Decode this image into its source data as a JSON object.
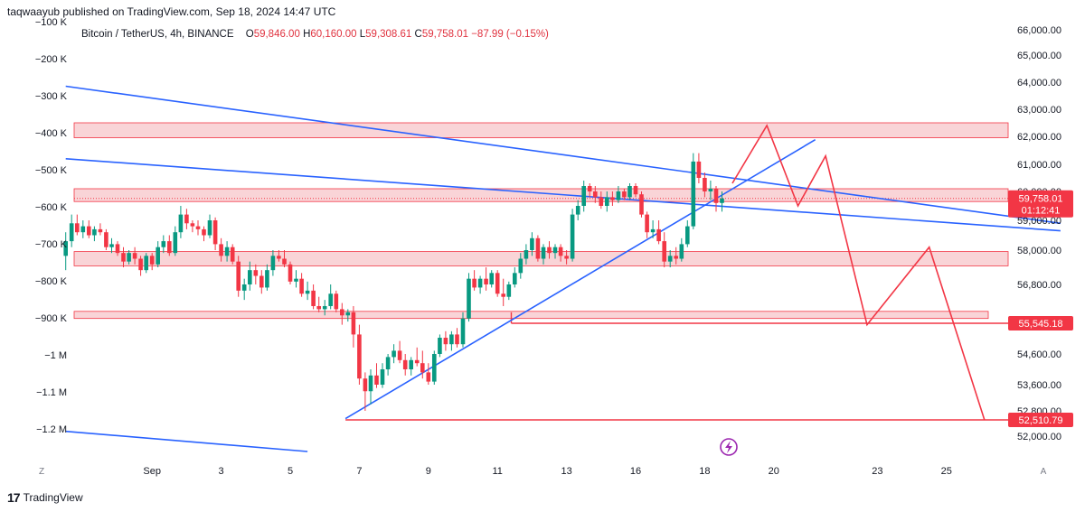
{
  "header": {
    "published_text": "taqwaayub published on TradingView.com, Sep 18, 2024 14:47 UTC"
  },
  "legend": {
    "symbol": "Bitcoin / TetherUS, 4h, BINANCE",
    "open_label": "O",
    "open_value": "59,846.00",
    "high_label": "H",
    "high_value": "60,160.00",
    "low_label": "L",
    "low_value": "59,308.61",
    "close_label": "C",
    "close_value": "59,758.01",
    "change": "−87.99 (−0.15%)"
  },
  "footer": {
    "logo": "17",
    "brand": "TradingView"
  },
  "colors": {
    "up": "#089981",
    "down": "#f23645",
    "trendline": "#2962ff",
    "projection": "#f23645",
    "zone_fill": "#f7c5ca",
    "zone_border": "#f23645"
  },
  "chart_data": {
    "type": "candlestick",
    "symbol": "BTCUSDT",
    "interval": "4h",
    "ylim": [
      51600,
      66300
    ],
    "xlim": [
      -2.4,
      27.5
    ],
    "right_axis_ticks": [
      66000,
      65000,
      64000,
      63000,
      62000,
      61000,
      60000,
      59000,
      58000,
      56800,
      54600,
      53600,
      52800,
      52000
    ],
    "right_axis_labels": [
      "66,000.00",
      "65,000.00",
      "64,000.00",
      "63,000.00",
      "62,000.00",
      "61,000.00",
      "60,000.00",
      "59,000.00",
      "58,000.00",
      "56,800.00",
      "54,600.00",
      "53,600.00",
      "52,800.00",
      "52,000.00"
    ],
    "left_axis_labels": [
      "−100 K",
      "−200 K",
      "−300 K",
      "−400 K",
      "−500 K",
      "−600 K",
      "−700 K",
      "−800 K",
      "−900 K",
      "−1 M",
      "−1.1 M",
      "−1.2 M"
    ],
    "x_tick_labels": [
      {
        "label": "Sep",
        "day": 1
      },
      {
        "label": "3",
        "day": 3
      },
      {
        "label": "5",
        "day": 5
      },
      {
        "label": "7",
        "day": 7
      },
      {
        "label": "9",
        "day": 9
      },
      {
        "label": "11",
        "day": 11
      },
      {
        "label": "13",
        "day": 13
      },
      {
        "label": "16",
        "day": 15
      },
      {
        "label": "18",
        "day": 17
      },
      {
        "label": "20",
        "day": 19
      },
      {
        "label": "23",
        "day": 22
      },
      {
        "label": "25",
        "day": 24
      }
    ],
    "corner_labels": {
      "left": "Z",
      "right": "A"
    },
    "current_price": {
      "value": 59758.01,
      "label": "59,758.01",
      "countdown": "01:12:41"
    },
    "price_labels": [
      {
        "value": 55545.18,
        "label": "55,545.18"
      },
      {
        "value": 52510.79,
        "label": "52,510.79"
      }
    ],
    "zones": [
      {
        "top": 62500,
        "bottom": 61950
      },
      {
        "top": 60100,
        "bottom": 59650
      },
      {
        "top": 57950,
        "bottom": 57450
      },
      {
        "top": 55930,
        "bottom": 55700
      }
    ],
    "horizontal_lines": [
      {
        "price": 55545,
        "from": 11.4,
        "to": 27.3
      },
      {
        "price": 52510,
        "from": 6.6,
        "to": 27.3
      }
    ],
    "trendlines": [
      {
        "x1": -1.5,
        "y1": 63850,
        "x2": 27.3,
        "y2": 58900
      },
      {
        "x1": -1.5,
        "y1": 61200,
        "x2": 27.3,
        "y2": 58650
      },
      {
        "x1": 6.6,
        "y1": 52550,
        "x2": 20.2,
        "y2": 61880
      },
      {
        "x1": -1.5,
        "y1": 52150,
        "x2": 5.5,
        "y2": 51600
      }
    ],
    "projection": [
      {
        "x": 17.8,
        "y": 60300
      },
      {
        "x": 18.8,
        "y": 62400
      },
      {
        "x": 19.7,
        "y": 59500
      },
      {
        "x": 20.5,
        "y": 61300
      },
      {
        "x": 21.7,
        "y": 55500
      },
      {
        "x": 23.5,
        "y": 58100
      },
      {
        "x": 25.1,
        "y": 52510
      }
    ],
    "candles": [
      [
        -1.5,
        57800,
        58600,
        57300,
        58300
      ],
      [
        -1.33,
        58300,
        59200,
        58100,
        58900
      ],
      [
        -1.17,
        58900,
        59200,
        58500,
        58600
      ],
      [
        -1.0,
        58600,
        59000,
        58400,
        58800
      ],
      [
        -0.83,
        58800,
        59000,
        58400,
        58500
      ],
      [
        -0.67,
        58500,
        58800,
        58300,
        58700
      ],
      [
        -0.5,
        58700,
        58900,
        58500,
        58600
      ],
      [
        -0.33,
        58600,
        58700,
        58000,
        58100
      ],
      [
        -0.17,
        58100,
        58400,
        57900,
        58200
      ],
      [
        0.0,
        58200,
        58300,
        57800,
        57900
      ],
      [
        0.17,
        57900,
        58100,
        57400,
        57600
      ],
      [
        0.33,
        57600,
        58000,
        57500,
        57900
      ],
      [
        0.5,
        57900,
        58100,
        57500,
        57700
      ],
      [
        0.67,
        57700,
        57800,
        57100,
        57300
      ],
      [
        0.83,
        57300,
        57900,
        57200,
        57800
      ],
      [
        1.0,
        57800,
        57900,
        57300,
        57500
      ],
      [
        1.17,
        57500,
        58300,
        57400,
        58100
      ],
      [
        1.33,
        58100,
        58500,
        57900,
        58300
      ],
      [
        1.5,
        58300,
        58500,
        57800,
        57900
      ],
      [
        1.67,
        57900,
        58800,
        57800,
        58600
      ],
      [
        1.83,
        58600,
        59500,
        58400,
        59200
      ],
      [
        2.0,
        59200,
        59400,
        58700,
        58900
      ],
      [
        2.17,
        58900,
        59000,
        58600,
        58800
      ],
      [
        2.33,
        58800,
        59000,
        58500,
        58700
      ],
      [
        2.5,
        58700,
        58800,
        58300,
        58500
      ],
      [
        2.67,
        58500,
        59200,
        58400,
        59000
      ],
      [
        2.83,
        59000,
        59100,
        58000,
        58200
      ],
      [
        3.0,
        58200,
        58400,
        57600,
        57800
      ],
      [
        3.17,
        57800,
        58300,
        57600,
        58100
      ],
      [
        3.33,
        58100,
        58200,
        57500,
        57600
      ],
      [
        3.5,
        57600,
        57800,
        56400,
        56600
      ],
      [
        3.67,
        56600,
        57000,
        56300,
        56800
      ],
      [
        3.83,
        56800,
        57600,
        56600,
        57300
      ],
      [
        4.0,
        57300,
        57500,
        56800,
        57100
      ],
      [
        4.17,
        57100,
        57300,
        56500,
        56700
      ],
      [
        4.33,
        56700,
        57500,
        56600,
        57300
      ],
      [
        4.5,
        57300,
        58000,
        57100,
        57800
      ],
      [
        4.67,
        57800,
        58000,
        57600,
        57700
      ],
      [
        4.83,
        57700,
        58000,
        57400,
        57500
      ],
      [
        5.0,
        57500,
        57600,
        56800,
        56900
      ],
      [
        5.17,
        56900,
        57300,
        56700,
        57000
      ],
      [
        5.33,
        57000,
        57200,
        56400,
        56500
      ],
      [
        5.5,
        56500,
        56900,
        56300,
        56600
      ],
      [
        5.67,
        56600,
        56800,
        56000,
        56100
      ],
      [
        5.83,
        56100,
        56400,
        55900,
        56000
      ],
      [
        6.0,
        56000,
        56300,
        55800,
        56100
      ],
      [
        6.17,
        56100,
        56800,
        56000,
        56500
      ],
      [
        6.33,
        56500,
        56600,
        55900,
        56000
      ],
      [
        6.5,
        56000,
        56200,
        55500,
        55800
      ],
      [
        6.67,
        55800,
        56000,
        55600,
        55900
      ],
      [
        6.83,
        55900,
        56100,
        54800,
        55200
      ],
      [
        7.0,
        55200,
        55500,
        53600,
        53800
      ],
      [
        7.17,
        53800,
        54000,
        52800,
        53400
      ],
      [
        7.33,
        53400,
        54100,
        53000,
        53900
      ],
      [
        7.5,
        53900,
        54300,
        53500,
        53600
      ],
      [
        7.67,
        53600,
        54300,
        53500,
        54100
      ],
      [
        7.83,
        54100,
        54600,
        53900,
        54500
      ],
      [
        8.0,
        54500,
        54900,
        54300,
        54700
      ],
      [
        8.17,
        54700,
        55000,
        54300,
        54400
      ],
      [
        8.33,
        54400,
        54600,
        53900,
        54100
      ],
      [
        8.5,
        54100,
        54500,
        53900,
        54400
      ],
      [
        8.67,
        54400,
        54800,
        54200,
        54300
      ],
      [
        8.83,
        54300,
        54700,
        53800,
        54000
      ],
      [
        9.0,
        54000,
        54300,
        53600,
        53700
      ],
      [
        9.17,
        53700,
        54700,
        53600,
        54600
      ],
      [
        9.33,
        54600,
        55200,
        54500,
        55100
      ],
      [
        9.5,
        55100,
        55300,
        54700,
        54900
      ],
      [
        9.67,
        54900,
        55300,
        54700,
        55200
      ],
      [
        9.83,
        55200,
        55400,
        54800,
        54900
      ],
      [
        10.0,
        54900,
        55900,
        54800,
        55700
      ],
      [
        10.17,
        55700,
        57200,
        55600,
        57000
      ],
      [
        10.33,
        57000,
        57300,
        56600,
        56700
      ],
      [
        10.5,
        56700,
        57100,
        56500,
        57000
      ],
      [
        10.67,
        57000,
        57400,
        56600,
        56800
      ],
      [
        10.83,
        56800,
        57300,
        56700,
        57200
      ],
      [
        11.0,
        57200,
        57300,
        56400,
        56500
      ],
      [
        11.17,
        56500,
        57000,
        56100,
        56400
      ],
      [
        11.33,
        56400,
        56900,
        56300,
        56800
      ],
      [
        11.5,
        56800,
        57400,
        56700,
        57200
      ],
      [
        11.67,
        57200,
        57900,
        57000,
        57700
      ],
      [
        11.83,
        57700,
        58200,
        57500,
        58000
      ],
      [
        12.0,
        58000,
        58600,
        57800,
        58400
      ],
      [
        12.17,
        58400,
        58500,
        57600,
        57700
      ],
      [
        12.33,
        57700,
        58200,
        57500,
        58100
      ],
      [
        12.5,
        58100,
        58300,
        57700,
        57900
      ],
      [
        12.67,
        57900,
        58200,
        57700,
        58100
      ],
      [
        12.83,
        58100,
        58200,
        57600,
        57800
      ],
      [
        13.0,
        57800,
        58000,
        57500,
        57700
      ],
      [
        13.17,
        57700,
        59400,
        57600,
        59200
      ],
      [
        13.33,
        59200,
        59700,
        59000,
        59500
      ],
      [
        13.5,
        59500,
        60400,
        59300,
        60200
      ],
      [
        13.67,
        60200,
        60300,
        59800,
        60000
      ],
      [
        13.83,
        60000,
        60200,
        59600,
        59800
      ],
      [
        14.0,
        59800,
        60000,
        59400,
        59500
      ],
      [
        14.17,
        59500,
        60000,
        59300,
        59800
      ],
      [
        14.33,
        59800,
        60000,
        59500,
        59700
      ],
      [
        14.5,
        59700,
        60200,
        59600,
        60000
      ],
      [
        14.67,
        60000,
        60100,
        59700,
        59800
      ],
      [
        14.83,
        59800,
        60300,
        59700,
        60200
      ],
      [
        15.0,
        60200,
        60300,
        59800,
        59900
      ],
      [
        15.17,
        59900,
        60000,
        59100,
        59200
      ],
      [
        15.33,
        59200,
        59300,
        58400,
        58600
      ],
      [
        15.5,
        58600,
        59000,
        58400,
        58700
      ],
      [
        15.67,
        58700,
        59000,
        58200,
        58300
      ],
      [
        15.83,
        58300,
        58600,
        57400,
        57600
      ],
      [
        16.0,
        57600,
        58000,
        57400,
        57800
      ],
      [
        16.17,
        57800,
        58100,
        57500,
        57700
      ],
      [
        16.33,
        57700,
        58400,
        57600,
        58200
      ],
      [
        16.5,
        58200,
        59000,
        58100,
        58800
      ],
      [
        16.67,
        58800,
        61400,
        58700,
        61100
      ],
      [
        16.83,
        61100,
        61400,
        60300,
        60500
      ],
      [
        17.0,
        60500,
        60700,
        59800,
        60000
      ],
      [
        17.17,
        60000,
        60400,
        59700,
        60100
      ],
      [
        17.33,
        60100,
        60200,
        59300,
        59600
      ],
      [
        17.5,
        59600,
        60000,
        59300,
        59758
      ]
    ]
  }
}
